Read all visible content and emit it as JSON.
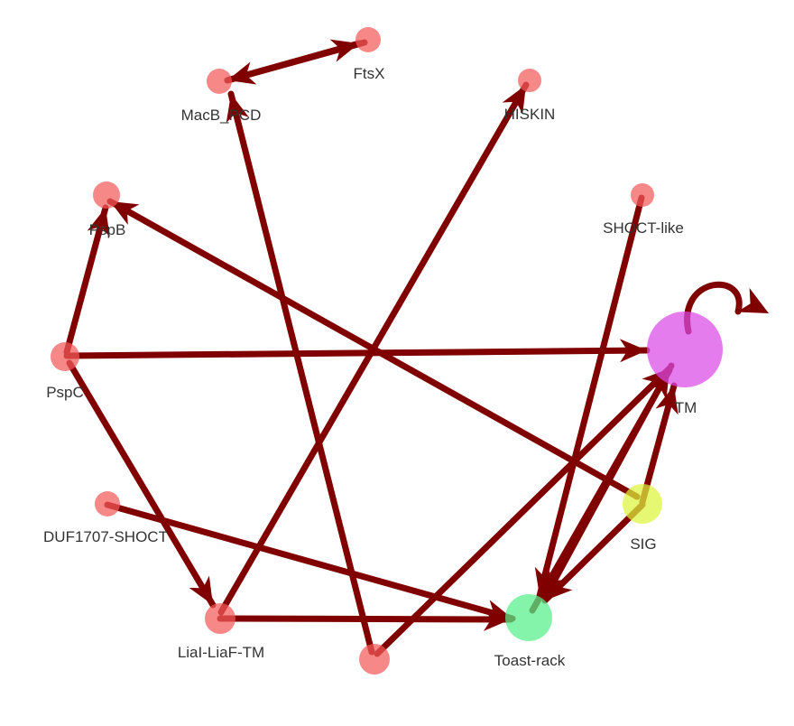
{
  "colors": {
    "edge": "#800000",
    "node_default": "#f45a5a",
    "node_tm": "#d94ae8",
    "node_sig": "#dcf43c",
    "node_toast_rack": "#55f08a",
    "label": "#333333"
  },
  "nodes": [
    {
      "id": "FtsX",
      "label": "FtsX",
      "color_key": "node_default"
    },
    {
      "id": "MacB_PCD",
      "label": "MacB_PCD",
      "color_key": "node_default"
    },
    {
      "id": "HISKIN",
      "label": "HISKIN",
      "color_key": "node_default"
    },
    {
      "id": "PspB",
      "label": "PspB",
      "color_key": "node_default"
    },
    {
      "id": "SHOCT-like",
      "label": "SHOCT-like",
      "color_key": "node_default"
    },
    {
      "id": "PspC",
      "label": "PspC",
      "color_key": "node_default"
    },
    {
      "id": "TM",
      "label": "TM",
      "color_key": "node_tm"
    },
    {
      "id": "DUF1707-SHOCT",
      "label": "DUF1707-SHOCT",
      "color_key": "node_default"
    },
    {
      "id": "SIG",
      "label": "SIG",
      "color_key": "node_sig"
    },
    {
      "id": "LiaI-LiaF-TM",
      "label": "LiaI-LiaF-TM",
      "color_key": "node_default"
    },
    {
      "id": "Toast-rack",
      "label": "Toast-rack",
      "color_key": "node_toast_rack"
    },
    {
      "id": "unlabeled",
      "label": "",
      "color_key": "node_default"
    }
  ],
  "edges": [
    {
      "from": "FtsX",
      "to": "MacB_PCD"
    },
    {
      "from": "MacB_PCD",
      "to": "FtsX"
    },
    {
      "from": "unlabeled",
      "to": "MacB_PCD"
    },
    {
      "from": "LiaI-LiaF-TM",
      "to": "HISKIN"
    },
    {
      "from": "PspC",
      "to": "PspB"
    },
    {
      "from": "SIG",
      "to": "PspB"
    },
    {
      "from": "PspC",
      "to": "TM"
    },
    {
      "from": "PspC",
      "to": "LiaI-LiaF-TM"
    },
    {
      "from": "TM",
      "to": "TM"
    },
    {
      "from": "SIG",
      "to": "TM"
    },
    {
      "from": "unlabeled",
      "to": "TM"
    },
    {
      "from": "Toast-rack",
      "to": "TM"
    },
    {
      "from": "TM",
      "to": "Toast-rack"
    },
    {
      "from": "SIG",
      "to": "Toast-rack"
    },
    {
      "from": "SHOCT-like",
      "to": "Toast-rack"
    },
    {
      "from": "DUF1707-SHOCT",
      "to": "Toast-rack"
    },
    {
      "from": "LiaI-LiaF-TM",
      "to": "Toast-rack"
    }
  ]
}
